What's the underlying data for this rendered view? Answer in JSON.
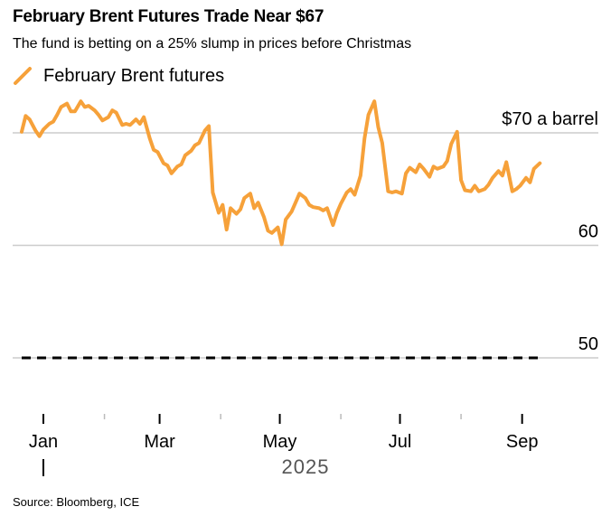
{
  "title": "February Brent Futures Trade Near $67",
  "subtitle": "The fund is betting on a 25% slump in prices before Christmas",
  "source": "Source: Bloomberg, ICE",
  "colors": {
    "series": "#f6a13a",
    "grid": "#cccccc",
    "dashed": "#000000"
  },
  "chart_data": {
    "type": "line",
    "title": "February Brent Futures Trade Near $67",
    "ylim": [
      45,
      75
    ],
    "y_ticks": [
      {
        "value": 70,
        "label": "$70 a barrel"
      },
      {
        "value": 60,
        "label": "60"
      },
      {
        "value": 50,
        "label": "50"
      }
    ],
    "x_ticks": [
      {
        "label": "Jan",
        "day": 0,
        "major": true
      },
      {
        "day": 31,
        "major": false
      },
      {
        "label": "Mar",
        "day": 59,
        "major": true
      },
      {
        "day": 90,
        "major": false
      },
      {
        "label": "May",
        "day": 120,
        "major": true
      },
      {
        "day": 151,
        "major": false
      },
      {
        "label": "Jul",
        "day": 181,
        "major": true
      },
      {
        "day": 212,
        "major": false
      },
      {
        "label": "Sep",
        "day": 243,
        "major": true
      }
    ],
    "x_range_days": [
      -11,
      256
    ],
    "year_label": "2025",
    "reference_line": {
      "value": 50,
      "style": "dashed"
    },
    "series": [
      {
        "name": "February Brent futures",
        "x_days": [
          -11,
          -9,
          -7,
          -4,
          -2,
          0,
          3,
          5,
          7,
          9,
          12,
          14,
          16,
          19,
          21,
          23,
          26,
          28,
          30,
          33,
          35,
          37,
          40,
          42,
          44,
          47,
          49,
          51,
          54,
          56,
          58,
          61,
          63,
          65,
          68,
          70,
          72,
          75,
          77,
          79,
          82,
          84,
          86,
          89,
          91,
          93,
          95,
          98,
          100,
          102,
          105,
          107,
          109,
          112,
          114,
          116,
          119,
          121,
          123,
          126,
          128,
          130,
          133,
          135,
          137,
          140,
          142,
          144,
          147,
          149,
          151,
          154,
          156,
          158,
          161,
          163,
          165,
          168,
          170,
          172,
          175,
          177,
          179,
          182,
          184,
          186,
          189,
          191,
          193,
          196,
          198,
          200,
          203,
          205,
          207,
          210,
          212,
          214,
          217,
          219,
          221,
          224,
          226,
          228,
          231,
          233,
          235,
          238,
          240,
          242,
          245,
          247,
          249,
          252
        ],
        "values": [
          70.1,
          71.5,
          71.2,
          70.2,
          69.7,
          70.3,
          70.8,
          71.0,
          71.6,
          72.3,
          72.6,
          71.9,
          71.9,
          72.8,
          72.3,
          72.4,
          72.0,
          71.6,
          71.1,
          71.4,
          72.0,
          71.8,
          70.7,
          70.8,
          70.7,
          71.2,
          70.8,
          71.4,
          69.5,
          68.5,
          68.3,
          67.3,
          67.1,
          66.4,
          67.0,
          67.2,
          68.0,
          68.4,
          68.9,
          69.1,
          70.2,
          70.6,
          64.7,
          62.9,
          63.6,
          61.4,
          63.3,
          62.8,
          63.2,
          64.2,
          64.6,
          63.3,
          63.8,
          62.5,
          61.3,
          61.1,
          61.6,
          60.1,
          62.3,
          63.0,
          63.8,
          64.6,
          64.2,
          63.6,
          63.4,
          63.3,
          63.1,
          63.3,
          61.8,
          62.9,
          63.7,
          64.7,
          65.0,
          64.5,
          66.2,
          69.5,
          71.6,
          72.8,
          70.5,
          69.1,
          64.8,
          64.7,
          64.8,
          64.6,
          66.4,
          66.9,
          66.5,
          67.2,
          66.8,
          66.1,
          67.0,
          66.8,
          67.0,
          67.5,
          69.0,
          70.1,
          65.8,
          64.9,
          64.8,
          65.3,
          64.8,
          65.0,
          65.4,
          66.0,
          66.6,
          66.2,
          67.4,
          64.8,
          65.0,
          65.3,
          66.0,
          65.6,
          66.8,
          67.3
        ]
      }
    ]
  }
}
